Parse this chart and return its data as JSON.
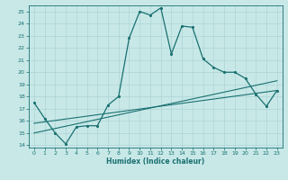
{
  "xlabel": "Humidex (Indice chaleur)",
  "bg_color": "#c8e8e8",
  "line_color": "#1a7070",
  "grid_color": "#aed4d4",
  "xlim": [
    -0.5,
    23.5
  ],
  "ylim": [
    13.8,
    25.5
  ],
  "xticks": [
    0,
    1,
    2,
    3,
    4,
    5,
    6,
    7,
    8,
    9,
    10,
    11,
    12,
    13,
    14,
    15,
    16,
    17,
    18,
    19,
    20,
    21,
    22,
    23
  ],
  "yticks": [
    14,
    15,
    16,
    17,
    18,
    19,
    20,
    21,
    22,
    23,
    24,
    25
  ],
  "main_x": [
    0,
    1,
    2,
    3,
    4,
    5,
    6,
    7,
    8,
    9,
    10,
    11,
    12,
    13,
    14,
    15,
    16,
    17,
    18,
    19,
    20,
    21,
    22,
    23
  ],
  "main_y": [
    17.5,
    16.2,
    15.0,
    14.1,
    15.5,
    15.6,
    15.6,
    17.3,
    18.0,
    22.8,
    25.0,
    24.7,
    25.3,
    21.5,
    23.8,
    23.7,
    21.1,
    20.4,
    20.0,
    20.0,
    19.5,
    18.2,
    17.2,
    18.5
  ],
  "line2_x": [
    0,
    23
  ],
  "line2_y": [
    15.0,
    19.3
  ],
  "line3_x": [
    0,
    23
  ],
  "line3_y": [
    15.8,
    18.5
  ]
}
